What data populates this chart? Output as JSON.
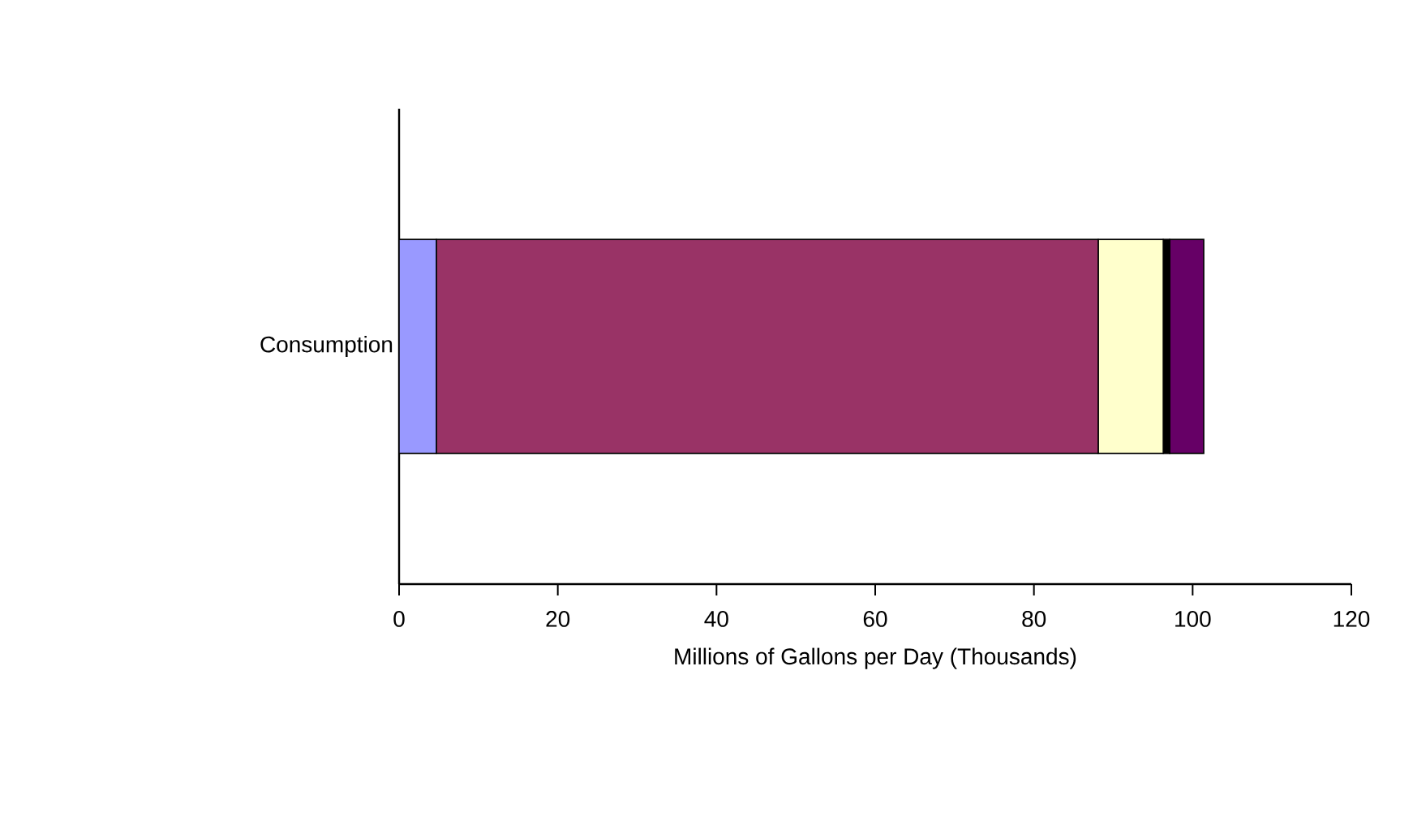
{
  "chart_data": {
    "type": "bar",
    "orientation": "horizontal",
    "stacked": true,
    "categories": [
      "Consumption"
    ],
    "series": [
      {
        "color": "#9999ff",
        "values": [
          4.7
        ]
      },
      {
        "color": "#993366",
        "values": [
          83.4
        ]
      },
      {
        "color": "#ffffcc",
        "values": [
          8.2
        ]
      },
      {
        "color": "#000000",
        "values": [
          0.8
        ]
      },
      {
        "color": "#660066",
        "values": [
          4.3
        ]
      }
    ],
    "xlabel": "Millions of Gallons per Day (Thousands)",
    "xlim": [
      0,
      120
    ],
    "xticks": [
      0,
      20,
      40,
      60,
      80,
      100,
      120
    ]
  }
}
